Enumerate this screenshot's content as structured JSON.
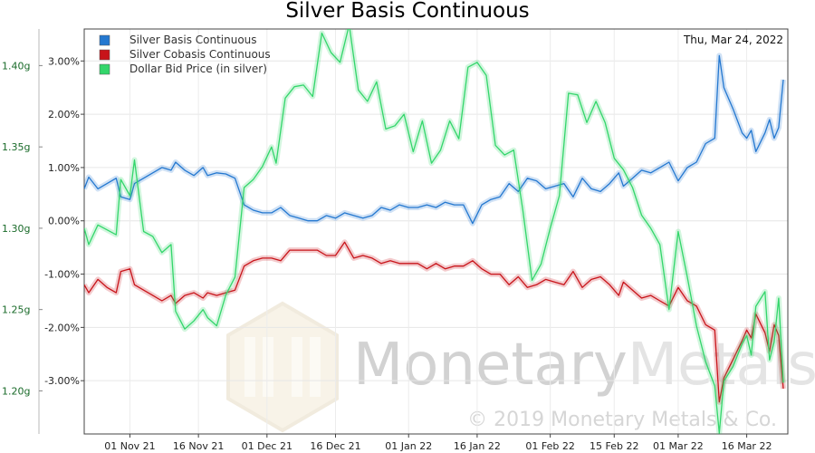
{
  "chart_data": {
    "type": "line",
    "title": "Silver Basis Continuous",
    "date_label": "Thu, Mar 24, 2022",
    "left_axis": {
      "ylim": [
        -4.0,
        3.6
      ],
      "ticks": [
        3,
        2,
        1,
        0,
        -1,
        -2,
        -3
      ],
      "tick_labels": [
        "3.00%",
        "2.00%",
        "1.00%",
        "0.00%",
        "-1.00%",
        "-2.00%",
        "-3.00%"
      ]
    },
    "right_axis": {
      "ylim": [
        1.1735,
        1.4225
      ],
      "ticks": [
        1.4,
        1.35,
        1.3,
        1.25,
        1.2
      ],
      "tick_labels": [
        "1.40g",
        "1.35g",
        "1.30g",
        "1.25g",
        "1.20g"
      ]
    },
    "x_axis": {
      "range": [
        "2021-10-22",
        "2022-03-25"
      ],
      "ticks": [
        "2021-11-01",
        "2021-11-16",
        "2021-12-01",
        "2021-12-16",
        "2022-01-01",
        "2022-01-16",
        "2022-02-01",
        "2022-02-15",
        "2022-03-01",
        "2022-03-16"
      ],
      "tick_labels": [
        "01 Nov 21",
        "16 Nov 21",
        "01 Dec 21",
        "16 Dec 21",
        "01 Jan 22",
        "16 Jan 22",
        "01 Feb 22",
        "15 Feb 22",
        "01 Mar 22",
        "16 Mar 22"
      ]
    },
    "legend_position": "top-left",
    "grid": true,
    "series": [
      {
        "name": "Silver Basis Continuous",
        "axis": "left",
        "color": "#2478d0",
        "points": [
          [
            "2021-10-22",
            0.6
          ],
          [
            "2021-10-23",
            0.82
          ],
          [
            "2021-10-25",
            0.6
          ],
          [
            "2021-10-27",
            0.7
          ],
          [
            "2021-10-29",
            0.8
          ],
          [
            "2021-10-30",
            0.45
          ],
          [
            "2021-11-01",
            0.4
          ],
          [
            "2021-11-02",
            0.7
          ],
          [
            "2021-11-04",
            0.8
          ],
          [
            "2021-11-06",
            0.9
          ],
          [
            "2021-11-08",
            1.0
          ],
          [
            "2021-11-10",
            0.95
          ],
          [
            "2021-11-11",
            1.1
          ],
          [
            "2021-11-13",
            0.95
          ],
          [
            "2021-11-15",
            0.85
          ],
          [
            "2021-11-17",
            1.0
          ],
          [
            "2021-11-18",
            0.85
          ],
          [
            "2021-11-20",
            0.9
          ],
          [
            "2021-11-22",
            0.88
          ],
          [
            "2021-11-24",
            0.8
          ],
          [
            "2021-11-26",
            0.3
          ],
          [
            "2021-11-28",
            0.2
          ],
          [
            "2021-11-30",
            0.15
          ],
          [
            "2021-12-02",
            0.15
          ],
          [
            "2021-12-04",
            0.25
          ],
          [
            "2021-12-06",
            0.1
          ],
          [
            "2021-12-08",
            0.05
          ],
          [
            "2021-12-10",
            0.0
          ],
          [
            "2021-12-12",
            0.0
          ],
          [
            "2021-12-14",
            0.1
          ],
          [
            "2021-12-16",
            0.05
          ],
          [
            "2021-12-18",
            0.15
          ],
          [
            "2021-12-20",
            0.1
          ],
          [
            "2021-12-22",
            0.05
          ],
          [
            "2021-12-24",
            0.1
          ],
          [
            "2021-12-26",
            0.25
          ],
          [
            "2021-12-28",
            0.2
          ],
          [
            "2021-12-30",
            0.3
          ],
          [
            "2022-01-01",
            0.25
          ],
          [
            "2022-01-03",
            0.25
          ],
          [
            "2022-01-05",
            0.3
          ],
          [
            "2022-01-07",
            0.25
          ],
          [
            "2022-01-09",
            0.35
          ],
          [
            "2022-01-11",
            0.3
          ],
          [
            "2022-01-13",
            0.3
          ],
          [
            "2022-01-15",
            -0.05
          ],
          [
            "2022-01-17",
            0.3
          ],
          [
            "2022-01-19",
            0.4
          ],
          [
            "2022-01-21",
            0.45
          ],
          [
            "2022-01-23",
            0.7
          ],
          [
            "2022-01-25",
            0.55
          ],
          [
            "2022-01-27",
            0.8
          ],
          [
            "2022-01-29",
            0.75
          ],
          [
            "2022-01-31",
            0.6
          ],
          [
            "2022-02-02",
            0.65
          ],
          [
            "2022-02-04",
            0.7
          ],
          [
            "2022-02-06",
            0.45
          ],
          [
            "2022-02-08",
            0.8
          ],
          [
            "2022-02-10",
            0.6
          ],
          [
            "2022-02-12",
            0.55
          ],
          [
            "2022-02-14",
            0.7
          ],
          [
            "2022-02-16",
            0.9
          ],
          [
            "2022-02-17",
            0.65
          ],
          [
            "2022-02-19",
            0.8
          ],
          [
            "2022-02-21",
            0.95
          ],
          [
            "2022-02-23",
            0.9
          ],
          [
            "2022-02-25",
            1.0
          ],
          [
            "2022-02-27",
            1.1
          ],
          [
            "2022-03-01",
            0.75
          ],
          [
            "2022-03-03",
            1.0
          ],
          [
            "2022-03-05",
            1.1
          ],
          [
            "2022-03-07",
            1.45
          ],
          [
            "2022-03-09",
            1.55
          ],
          [
            "2022-03-10",
            3.1
          ],
          [
            "2022-03-11",
            2.5
          ],
          [
            "2022-03-13",
            2.1
          ],
          [
            "2022-03-15",
            1.65
          ],
          [
            "2022-03-16",
            1.55
          ],
          [
            "2022-03-17",
            1.7
          ],
          [
            "2022-03-18",
            1.3
          ],
          [
            "2022-03-20",
            1.65
          ],
          [
            "2022-03-21",
            1.9
          ],
          [
            "2022-03-22",
            1.55
          ],
          [
            "2022-03-23",
            1.75
          ],
          [
            "2022-03-24",
            2.65
          ]
        ]
      },
      {
        "name": "Silver Cobasis Continuous",
        "axis": "left",
        "color": "#c8141a",
        "points": [
          [
            "2021-10-22",
            -1.2
          ],
          [
            "2021-10-23",
            -1.35
          ],
          [
            "2021-10-25",
            -1.1
          ],
          [
            "2021-10-27",
            -1.25
          ],
          [
            "2021-10-29",
            -1.35
          ],
          [
            "2021-10-30",
            -0.95
          ],
          [
            "2021-11-01",
            -0.9
          ],
          [
            "2021-11-02",
            -1.2
          ],
          [
            "2021-11-04",
            -1.3
          ],
          [
            "2021-11-06",
            -1.4
          ],
          [
            "2021-11-08",
            -1.5
          ],
          [
            "2021-11-10",
            -1.4
          ],
          [
            "2021-11-11",
            -1.55
          ],
          [
            "2021-11-13",
            -1.4
          ],
          [
            "2021-11-15",
            -1.35
          ],
          [
            "2021-11-17",
            -1.45
          ],
          [
            "2021-11-18",
            -1.35
          ],
          [
            "2021-11-20",
            -1.4
          ],
          [
            "2021-11-22",
            -1.35
          ],
          [
            "2021-11-24",
            -1.3
          ],
          [
            "2021-11-26",
            -0.85
          ],
          [
            "2021-11-28",
            -0.75
          ],
          [
            "2021-11-30",
            -0.7
          ],
          [
            "2021-12-02",
            -0.7
          ],
          [
            "2021-12-04",
            -0.75
          ],
          [
            "2021-12-06",
            -0.55
          ],
          [
            "2021-12-08",
            -0.55
          ],
          [
            "2021-12-10",
            -0.55
          ],
          [
            "2021-12-12",
            -0.55
          ],
          [
            "2021-12-14",
            -0.65
          ],
          [
            "2021-12-16",
            -0.65
          ],
          [
            "2021-12-18",
            -0.4
          ],
          [
            "2021-12-20",
            -0.7
          ],
          [
            "2021-12-22",
            -0.65
          ],
          [
            "2021-12-24",
            -0.7
          ],
          [
            "2021-12-26",
            -0.8
          ],
          [
            "2021-12-28",
            -0.75
          ],
          [
            "2021-12-30",
            -0.8
          ],
          [
            "2022-01-01",
            -0.8
          ],
          [
            "2022-01-03",
            -0.8
          ],
          [
            "2022-01-05",
            -0.9
          ],
          [
            "2022-01-07",
            -0.8
          ],
          [
            "2022-01-09",
            -0.9
          ],
          [
            "2022-01-11",
            -0.85
          ],
          [
            "2022-01-13",
            -0.85
          ],
          [
            "2022-01-15",
            -0.75
          ],
          [
            "2022-01-17",
            -0.9
          ],
          [
            "2022-01-19",
            -1.0
          ],
          [
            "2022-01-21",
            -1.0
          ],
          [
            "2022-01-23",
            -1.2
          ],
          [
            "2022-01-25",
            -1.05
          ],
          [
            "2022-01-27",
            -1.25
          ],
          [
            "2022-01-29",
            -1.2
          ],
          [
            "2022-01-31",
            -1.1
          ],
          [
            "2022-02-02",
            -1.15
          ],
          [
            "2022-02-04",
            -1.2
          ],
          [
            "2022-02-06",
            -0.95
          ],
          [
            "2022-02-08",
            -1.25
          ],
          [
            "2022-02-10",
            -1.1
          ],
          [
            "2022-02-12",
            -1.05
          ],
          [
            "2022-02-14",
            -1.2
          ],
          [
            "2022-02-16",
            -1.4
          ],
          [
            "2022-02-17",
            -1.15
          ],
          [
            "2022-02-19",
            -1.3
          ],
          [
            "2022-02-21",
            -1.45
          ],
          [
            "2022-02-23",
            -1.4
          ],
          [
            "2022-02-25",
            -1.5
          ],
          [
            "2022-02-27",
            -1.6
          ],
          [
            "2022-03-01",
            -1.25
          ],
          [
            "2022-03-03",
            -1.5
          ],
          [
            "2022-03-05",
            -1.6
          ],
          [
            "2022-03-07",
            -1.95
          ],
          [
            "2022-03-09",
            -2.05
          ],
          [
            "2022-03-10",
            -3.4
          ],
          [
            "2022-03-11",
            -2.95
          ],
          [
            "2022-03-13",
            -2.6
          ],
          [
            "2022-03-15",
            -2.25
          ],
          [
            "2022-03-16",
            -2.05
          ],
          [
            "2022-03-17",
            -2.2
          ],
          [
            "2022-03-18",
            -1.75
          ],
          [
            "2022-03-20",
            -2.1
          ],
          [
            "2022-03-21",
            -2.45
          ],
          [
            "2022-03-22",
            -1.95
          ],
          [
            "2022-03-23",
            -2.15
          ],
          [
            "2022-03-24",
            -3.15
          ]
        ]
      },
      {
        "name": "Dollar Bid Price (in silver)",
        "axis": "right",
        "color": "#33d66b",
        "points": [
          [
            "2021-10-22",
            1.3
          ],
          [
            "2021-10-23",
            1.29
          ],
          [
            "2021-10-25",
            1.302
          ],
          [
            "2021-10-27",
            1.299
          ],
          [
            "2021-10-29",
            1.296
          ],
          [
            "2021-10-30",
            1.33
          ],
          [
            "2021-11-01",
            1.32
          ],
          [
            "2021-11-02",
            1.342
          ],
          [
            "2021-11-04",
            1.298
          ],
          [
            "2021-11-06",
            1.295
          ],
          [
            "2021-11-08",
            1.285
          ],
          [
            "2021-11-10",
            1.29
          ],
          [
            "2021-11-11",
            1.249
          ],
          [
            "2021-11-13",
            1.238
          ],
          [
            "2021-11-15",
            1.243
          ],
          [
            "2021-11-17",
            1.25
          ],
          [
            "2021-11-18",
            1.245
          ],
          [
            "2021-11-20",
            1.24
          ],
          [
            "2021-11-22",
            1.259
          ],
          [
            "2021-11-24",
            1.27
          ],
          [
            "2021-11-26",
            1.325
          ],
          [
            "2021-11-28",
            1.33
          ],
          [
            "2021-11-30",
            1.338
          ],
          [
            "2021-12-02",
            1.35
          ],
          [
            "2021-12-03",
            1.34
          ],
          [
            "2021-12-05",
            1.38
          ],
          [
            "2021-12-07",
            1.387
          ],
          [
            "2021-12-09",
            1.388
          ],
          [
            "2021-12-11",
            1.381
          ],
          [
            "2021-12-13",
            1.42
          ],
          [
            "2021-12-15",
            1.408
          ],
          [
            "2021-12-17",
            1.402
          ],
          [
            "2021-12-19",
            1.425
          ],
          [
            "2021-12-21",
            1.385
          ],
          [
            "2021-12-23",
            1.378
          ],
          [
            "2021-12-25",
            1.39
          ],
          [
            "2021-12-27",
            1.361
          ],
          [
            "2021-12-29",
            1.363
          ],
          [
            "2021-12-31",
            1.37
          ],
          [
            "2022-01-02",
            1.347
          ],
          [
            "2022-01-04",
            1.366
          ],
          [
            "2022-01-06",
            1.34
          ],
          [
            "2022-01-08",
            1.348
          ],
          [
            "2022-01-10",
            1.366
          ],
          [
            "2022-01-12",
            1.355
          ],
          [
            "2022-01-14",
            1.399
          ],
          [
            "2022-01-16",
            1.402
          ],
          [
            "2022-01-18",
            1.394
          ],
          [
            "2022-01-20",
            1.351
          ],
          [
            "2022-01-22",
            1.345
          ],
          [
            "2022-01-24",
            1.348
          ],
          [
            "2022-01-26",
            1.311
          ],
          [
            "2022-01-28",
            1.268
          ],
          [
            "2022-01-30",
            1.278
          ],
          [
            "2022-02-01",
            1.3
          ],
          [
            "2022-02-03",
            1.32
          ],
          [
            "2022-02-05",
            1.383
          ],
          [
            "2022-02-07",
            1.382
          ],
          [
            "2022-02-09",
            1.365
          ],
          [
            "2022-02-11",
            1.378
          ],
          [
            "2022-02-13",
            1.365
          ],
          [
            "2022-02-15",
            1.343
          ],
          [
            "2022-02-17",
            1.336
          ],
          [
            "2022-02-19",
            1.325
          ],
          [
            "2022-02-21",
            1.308
          ],
          [
            "2022-02-23",
            1.3
          ],
          [
            "2022-02-25",
            1.29
          ],
          [
            "2022-02-27",
            1.25
          ],
          [
            "2022-03-01",
            1.298
          ],
          [
            "2022-03-03",
            1.27
          ],
          [
            "2022-03-05",
            1.24
          ],
          [
            "2022-03-07",
            1.218
          ],
          [
            "2022-03-09",
            1.203
          ],
          [
            "2022-03-10",
            1.174
          ],
          [
            "2022-03-11",
            1.206
          ],
          [
            "2022-03-13",
            1.215
          ],
          [
            "2022-03-15",
            1.229
          ],
          [
            "2022-03-16",
            1.234
          ],
          [
            "2022-03-17",
            1.222
          ],
          [
            "2022-03-18",
            1.252
          ],
          [
            "2022-03-20",
            1.261
          ],
          [
            "2022-03-21",
            1.219
          ],
          [
            "2022-03-22",
            1.23
          ],
          [
            "2022-03-23",
            1.257
          ],
          [
            "2022-03-24",
            1.205
          ]
        ]
      }
    ]
  },
  "watermark": {
    "brand": "Monetary",
    "brand_suffix": "Metals",
    "copyright": "© 2019 Monetary Metals & Co."
  }
}
